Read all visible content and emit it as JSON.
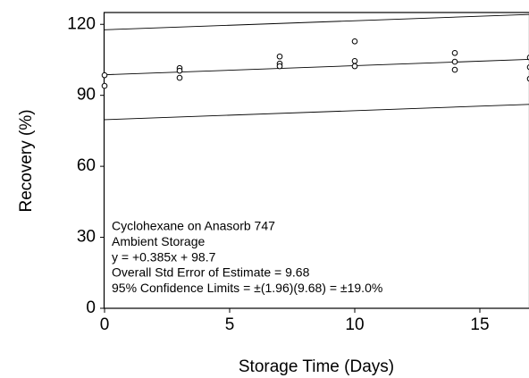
{
  "chart_data": {
    "type": "scatter",
    "xlabel": "Storage Time (Days)",
    "ylabel": "Recovery (%)",
    "xlim": [
      0,
      17
    ],
    "ylim": [
      0,
      125
    ],
    "xticks": [
      0,
      5,
      10,
      15
    ],
    "yticks": [
      0,
      30,
      60,
      90,
      120
    ],
    "grid": false,
    "series": [
      {
        "color": "#000000",
        "x": [
          0,
          0,
          3,
          3,
          3,
          7,
          7,
          7,
          10,
          10,
          10,
          14,
          14,
          14,
          17,
          17,
          17
        ],
        "values": [
          98.5,
          94,
          101.5,
          100.4,
          97.4,
          106.4,
          103.4,
          102.3,
          112.8,
          104.5,
          102.3,
          107.9,
          104.2,
          100.8,
          106,
          101.9,
          97
        ]
      }
    ],
    "lines": [
      {
        "color": "#000000",
        "x": [
          0,
          17
        ],
        "values": [
          117.7,
          124.2
        ]
      },
      {
        "color": "#000000",
        "x": [
          0,
          17
        ],
        "values": [
          98.7,
          105.2
        ]
      },
      {
        "color": "#000000",
        "x": [
          0,
          17
        ],
        "values": [
          79.7,
          86.2
        ]
      }
    ],
    "annotations": [
      "Cyclohexane on Anasorb 747",
      "Ambient Storage",
      "y = +0.385x + 98.7",
      "Overall Std Error of Estimate = 9.68",
      "95% Confidence Limits = ±(1.96)(9.68) = ±19.0%"
    ]
  }
}
